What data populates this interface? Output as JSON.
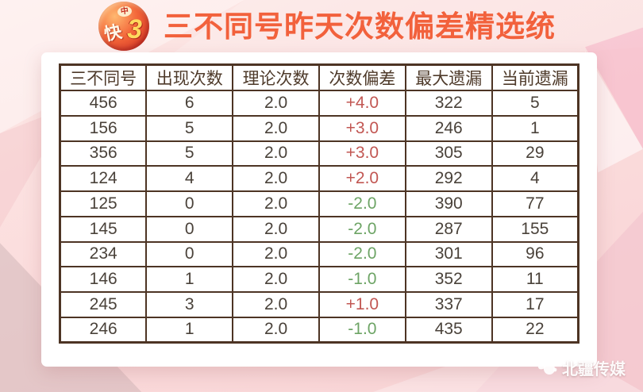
{
  "header": {
    "title": "三不同号昨天次数偏差精选统计",
    "logo": {
      "kuai": "快",
      "three": "3",
      "emblem": "中"
    }
  },
  "colors": {
    "title": "#f2613c",
    "table_border": "#4d3424",
    "header_text": "#4e3a2a",
    "cell_text": "#4a423a",
    "positive_deviation": "#c25753",
    "negative_deviation": "#6da465",
    "background": "#fbdddd",
    "card": "#ffffff"
  },
  "chart_data": {
    "type": "table",
    "title": "三不同号昨天次数偏差精选统计",
    "columns": [
      "三不同号",
      "出现次数",
      "理论次数",
      "次数偏差",
      "最大遗漏",
      "当前遗漏"
    ],
    "rows": [
      {
        "cells": [
          "456",
          "6",
          "2.0",
          "+4.0",
          "322",
          "5"
        ],
        "deviation": "positive"
      },
      {
        "cells": [
          "156",
          "5",
          "2.0",
          "+3.0",
          "246",
          "1"
        ],
        "deviation": "positive"
      },
      {
        "cells": [
          "356",
          "5",
          "2.0",
          "+3.0",
          "305",
          "29"
        ],
        "deviation": "positive"
      },
      {
        "cells": [
          "124",
          "4",
          "2.0",
          "+2.0",
          "292",
          "4"
        ],
        "deviation": "positive"
      },
      {
        "cells": [
          "125",
          "0",
          "2.0",
          "-2.0",
          "390",
          "77"
        ],
        "deviation": "negative"
      },
      {
        "cells": [
          "145",
          "0",
          "2.0",
          "-2.0",
          "287",
          "155"
        ],
        "deviation": "negative"
      },
      {
        "cells": [
          "234",
          "0",
          "2.0",
          "-2.0",
          "301",
          "96"
        ],
        "deviation": "negative"
      },
      {
        "cells": [
          "146",
          "1",
          "2.0",
          "-1.0",
          "352",
          "11"
        ],
        "deviation": "negative"
      },
      {
        "cells": [
          "245",
          "3",
          "2.0",
          "+1.0",
          "337",
          "17"
        ],
        "deviation": "positive"
      },
      {
        "cells": [
          "246",
          "1",
          "2.0",
          "-1.0",
          "435",
          "22"
        ],
        "deviation": "negative"
      }
    ]
  },
  "watermark": {
    "text": "北疆传媒"
  }
}
